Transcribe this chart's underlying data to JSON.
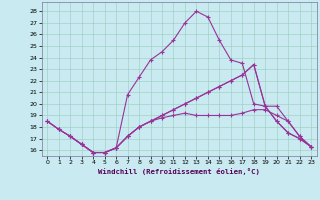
{
  "xlabel": "Windchill (Refroidissement éolien,°C)",
  "bg_color": "#c8eaf0",
  "grid_color": "#99ccbb",
  "line_color": "#993399",
  "xlim_min": -0.5,
  "xlim_max": 23.5,
  "ylim_min": 15.5,
  "ylim_max": 28.8,
  "yticks": [
    16,
    17,
    18,
    19,
    20,
    21,
    22,
    23,
    24,
    25,
    26,
    27,
    28
  ],
  "xticks": [
    0,
    1,
    2,
    3,
    4,
    5,
    6,
    7,
    8,
    9,
    10,
    11,
    12,
    13,
    14,
    15,
    16,
    17,
    18,
    19,
    20,
    21,
    22,
    23
  ],
  "line1_x": [
    0,
    1,
    2,
    3,
    4,
    5,
    6,
    7,
    8,
    9,
    10,
    11,
    12,
    13,
    14,
    15,
    16,
    17,
    18,
    19,
    20,
    21,
    22,
    23
  ],
  "line1_y": [
    18.5,
    17.8,
    17.2,
    16.5,
    15.8,
    15.8,
    16.2,
    17.2,
    18.0,
    18.5,
    18.8,
    19.0,
    19.2,
    19.0,
    19.0,
    19.0,
    19.0,
    19.2,
    19.5,
    19.5,
    19.0,
    18.5,
    17.2,
    16.3
  ],
  "line2_x": [
    0,
    1,
    2,
    3,
    4,
    5,
    6,
    7,
    8,
    9,
    10,
    11,
    12,
    13,
    14,
    15,
    16,
    17,
    18,
    19,
    20,
    21,
    22,
    23
  ],
  "line2_y": [
    18.5,
    17.8,
    17.2,
    16.5,
    15.8,
    15.8,
    16.2,
    20.8,
    22.3,
    23.8,
    24.5,
    25.5,
    27.0,
    28.0,
    27.5,
    25.5,
    23.8,
    23.5,
    20.0,
    19.8,
    19.8,
    18.5,
    17.2,
    16.3
  ],
  "line3_x": [
    0,
    1,
    2,
    3,
    4,
    5,
    6,
    7,
    8,
    9,
    10,
    11,
    12,
    13,
    14,
    15,
    16,
    17,
    18,
    19,
    20,
    21,
    22,
    23
  ],
  "line3_y": [
    18.5,
    17.8,
    17.2,
    16.5,
    15.8,
    15.8,
    16.2,
    17.2,
    18.0,
    18.5,
    19.0,
    19.5,
    20.0,
    20.5,
    21.0,
    21.5,
    22.0,
    22.5,
    23.4,
    19.8,
    18.5,
    17.5,
    17.0,
    16.3
  ],
  "line4_x": [
    2,
    3,
    4,
    5,
    6,
    7,
    8,
    9,
    10,
    11,
    12,
    13,
    14,
    15,
    16,
    17,
    18,
    19,
    20,
    21,
    22,
    23
  ],
  "line4_y": [
    17.2,
    16.5,
    15.8,
    15.8,
    16.2,
    17.2,
    18.0,
    18.5,
    19.0,
    19.5,
    20.0,
    20.5,
    21.0,
    21.5,
    22.0,
    22.5,
    23.4,
    19.8,
    18.5,
    17.5,
    17.0,
    16.3
  ]
}
